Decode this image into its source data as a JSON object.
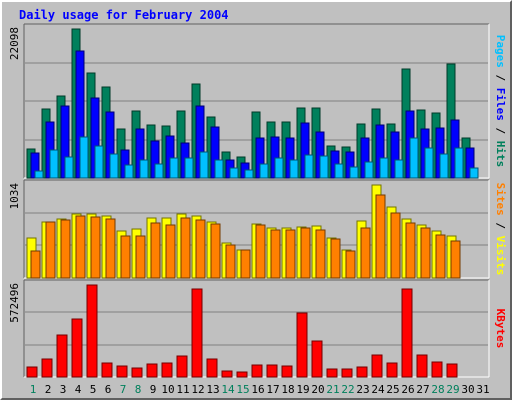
{
  "chart_data": [
    {
      "type": "bar",
      "title": "Daily usage for February 2004",
      "categories": [
        "1",
        "2",
        "3",
        "4",
        "5",
        "6",
        "7",
        "8",
        "9",
        "10",
        "11",
        "12",
        "13",
        "14",
        "15",
        "16",
        "17",
        "18",
        "19",
        "20",
        "21",
        "22",
        "23",
        "24",
        "25",
        "26",
        "27",
        "28",
        "29",
        "30",
        "31"
      ],
      "weekend_days": [
        "1",
        "7",
        "8",
        "14",
        "15",
        "21",
        "22",
        "28",
        "29"
      ],
      "y_max_label": "22098",
      "ylim": [
        0,
        22098
      ],
      "series": [
        {
          "name": "Hits",
          "color": "#00805c",
          "values": [
            4300,
            10200,
            12200,
            22098,
            15600,
            13500,
            7300,
            9900,
            7800,
            7700,
            10000,
            14000,
            9100,
            3800,
            3100,
            9800,
            8300,
            8300,
            10400,
            10400,
            4800,
            4600,
            8000,
            10200,
            8000,
            16200,
            10100,
            9600,
            16900,
            5900,
            null
          ]
        },
        {
          "name": "Files",
          "color": "#0000ff",
          "values": [
            3700,
            8300,
            10700,
            18900,
            11800,
            9800,
            4200,
            7200,
            5500,
            6300,
            5200,
            10700,
            7600,
            2600,
            2200,
            5900,
            6100,
            6000,
            8200,
            6800,
            4000,
            3800,
            6000,
            7900,
            6800,
            9900,
            7200,
            7400,
            8600,
            4400,
            null
          ]
        },
        {
          "name": "Pages",
          "color": "#00c0ff",
          "values": [
            1100,
            4200,
            3100,
            6100,
            4800,
            3600,
            1900,
            2600,
            2100,
            2900,
            3000,
            3800,
            2600,
            1500,
            1200,
            2100,
            2900,
            2600,
            3400,
            3200,
            2100,
            1700,
            2300,
            3000,
            2600,
            5900,
            4400,
            3600,
            4500,
            1500,
            null
          ]
        }
      ]
    },
    {
      "type": "bar",
      "y_max_label": "1034",
      "ylim": [
        0,
        1034
      ],
      "series": [
        {
          "name": "Visits",
          "color": "#ffff00",
          "values": [
            446,
            620,
            654,
            716,
            708,
            694,
            523,
            544,
            666,
            666,
            716,
            686,
            623,
            393,
            306,
            599,
            560,
            552,
            565,
            576,
            444,
            308,
            633,
            1034,
            787,
            660,
            586,
            528,
            470,
            null,
            null
          ]
        },
        {
          "name": "Sites",
          "color": "#ff8000",
          "values": [
            297,
            620,
            648,
            684,
            674,
            656,
            464,
            467,
            609,
            584,
            663,
            645,
            599,
            367,
            306,
            584,
            533,
            530,
            555,
            537,
            432,
            295,
            558,
            918,
            719,
            615,
            560,
            475,
            415,
            null,
            null
          ]
        }
      ]
    },
    {
      "type": "bar",
      "y_max_label": "572496",
      "ylim": [
        0,
        572496
      ],
      "series": [
        {
          "name": "KBytes",
          "color": "#ff0000",
          "values": [
            60000,
            115000,
            260000,
            360000,
            572496,
            85000,
            70000,
            55000,
            80000,
            85000,
            130000,
            550000,
            115000,
            37000,
            30000,
            75000,
            75000,
            68000,
            400000,
            225000,
            50000,
            50000,
            65000,
            135000,
            88000,
            550000,
            135000,
            95000,
            80000,
            null,
            null
          ]
        }
      ]
    }
  ]
}
